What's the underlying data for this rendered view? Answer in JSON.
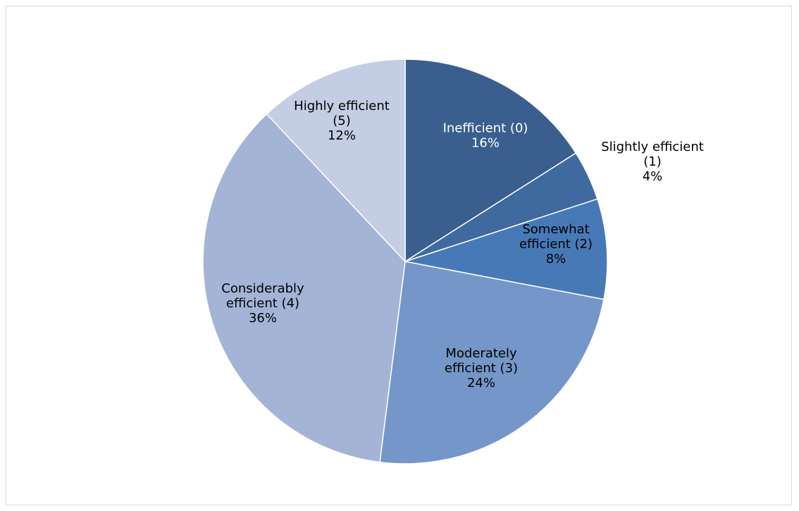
{
  "chart_data": {
    "type": "pie",
    "title": "",
    "slices": [
      {
        "label_lines": [
          "Inefficient (0)",
          "16%"
        ],
        "value": 16,
        "color": "#3a5f8f",
        "label_color": "#ffffff"
      },
      {
        "label_lines": [
          "Slightly efficient",
          "(1)",
          "4%"
        ],
        "value": 4,
        "color": "#3e6a9f",
        "label_color": "#000000"
      },
      {
        "label_lines": [
          "Somewhat",
          "efficient (2)",
          "8%"
        ],
        "value": 8,
        "color": "#4879b7",
        "label_color": "#000000"
      },
      {
        "label_lines": [
          "Moderately",
          "efficient (3)",
          "24%"
        ],
        "value": 24,
        "color": "#7596c8",
        "label_color": "#000000"
      },
      {
        "label_lines": [
          "Considerably",
          "efficient (4)",
          "36%"
        ],
        "value": 36,
        "color": "#a3b4d6",
        "label_color": "#000000"
      },
      {
        "label_lines": [
          "Highly efficient",
          "(5)",
          "12%"
        ],
        "value": 12,
        "color": "#c3cde3",
        "label_color": "#000000"
      }
    ],
    "legend": "none",
    "start_angle": "12 o'clock",
    "direction": "clockwise"
  }
}
